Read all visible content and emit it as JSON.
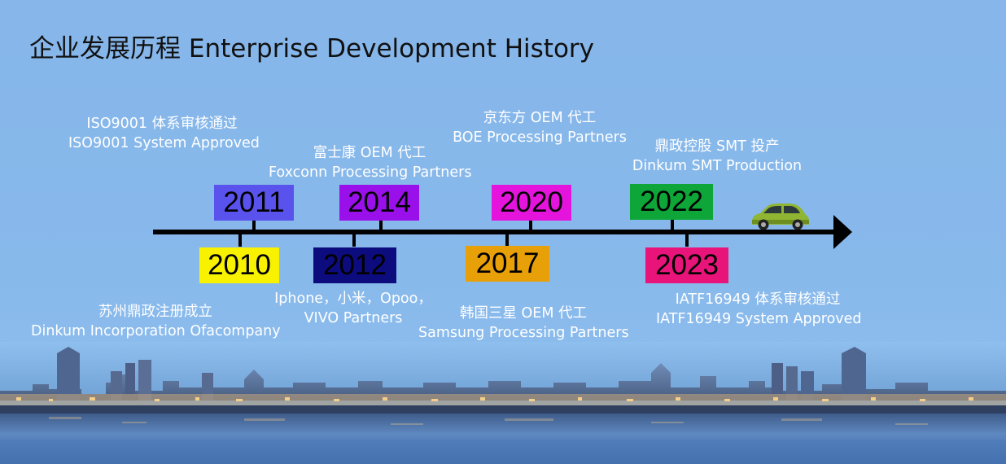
{
  "title": "企业发展历程 Enterprise Development History",
  "milestones": [
    {
      "year": "2010",
      "color": "#f8f200",
      "caption": [
        "苏州鼎政注册成立",
        "Dinkum Incorporation Ofacompany"
      ]
    },
    {
      "year": "2011",
      "color": "#5a52ec",
      "caption": [
        "ISO9001 体系审核通过",
        "ISO9001 System Approved"
      ]
    },
    {
      "year": "2012",
      "color": "#0c0c7e",
      "caption": [
        "Iphone，小米，Opoo，",
        "VIVO Partners"
      ]
    },
    {
      "year": "2014",
      "color": "#9a10ea",
      "caption": [
        "富士康 OEM 代工",
        "Foxconn Processing Partners"
      ]
    },
    {
      "year": "2017",
      "color": "#e8a008",
      "caption": [
        "韩国三星 OEM 代工",
        "Samsung Processing Partners"
      ]
    },
    {
      "year": "2020",
      "color": "#e414dc",
      "caption": [
        "京东方 OEM 代工",
        "BOE Processing Partners"
      ]
    },
    {
      "year": "2022",
      "color": "#0ea638",
      "caption": [
        "鼎政控股 SMT 投产",
        "Dinkum SMT Production"
      ]
    },
    {
      "year": "2023",
      "color": "#e8147a",
      "caption": [
        "IATF16949 体系审核通过",
        "IATF16949 System Approved"
      ]
    }
  ],
  "icons": [
    "car-icon",
    "city-skyline-photo"
  ]
}
